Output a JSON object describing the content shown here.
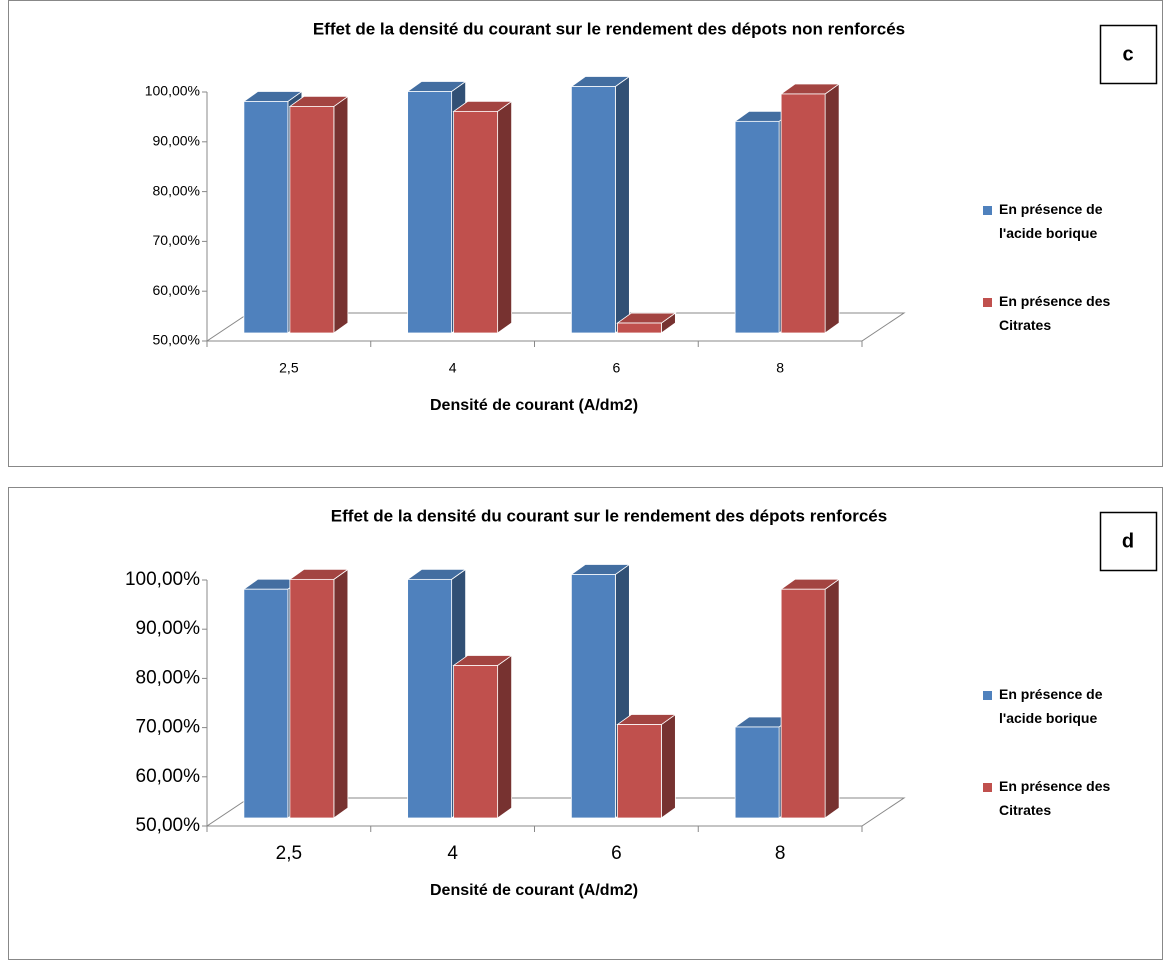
{
  "chart_data": [
    {
      "type": "bar3d",
      "title": "Effet de la densité du courant sur le rendement  des dépots non renforcés",
      "annotation": "c",
      "x_label": "Densité de courant (A/dm2)",
      "categories": [
        "2,5",
        "4",
        "6",
        "8"
      ],
      "series": [
        {
          "name": "En présence de l'acide borique",
          "color": "#4f81bd",
          "values": [
            96.5,
            98.5,
            99.5,
            92.5
          ]
        },
        {
          "name": "En présence des Citrates",
          "color": "#c0504d",
          "values": [
            95.5,
            94.5,
            52,
            98
          ]
        }
      ],
      "ylim": [
        50,
        100
      ],
      "yticks": [
        {
          "value": 50,
          "label": "50,00%"
        },
        {
          "value": 60,
          "label": "60,00%"
        },
        {
          "value": 70,
          "label": "70,00%"
        },
        {
          "value": 80,
          "label": "80,00%"
        },
        {
          "value": 90,
          "label": "90,00%"
        },
        {
          "value": 100,
          "label": "100,00%"
        }
      ],
      "legend": "right"
    },
    {
      "type": "bar3d",
      "title": "Effet de la densité du courant sur le rendement  des dépots renforcés",
      "annotation": "d",
      "x_label": "Densité de courant (A/dm2)",
      "categories": [
        "2,5",
        "4",
        "6",
        "8"
      ],
      "series": [
        {
          "name": "En présence de l'acide borique",
          "color": "#4f81bd",
          "values": [
            96.5,
            98.5,
            99.5,
            68.5
          ]
        },
        {
          "name": "En présence des Citrates",
          "color": "#c0504d",
          "values": [
            98.5,
            81,
            69,
            96.5
          ]
        }
      ],
      "ylim": [
        50,
        100
      ],
      "yticks": [
        {
          "value": 50,
          "label": "50,00%"
        },
        {
          "value": 60,
          "label": "60,00%"
        },
        {
          "value": 70,
          "label": "70,00%"
        },
        {
          "value": 80,
          "label": "80,00%"
        },
        {
          "value": 90,
          "label": "90,00%"
        },
        {
          "value": 100,
          "label": "100,00%"
        }
      ],
      "legend": "right"
    }
  ]
}
